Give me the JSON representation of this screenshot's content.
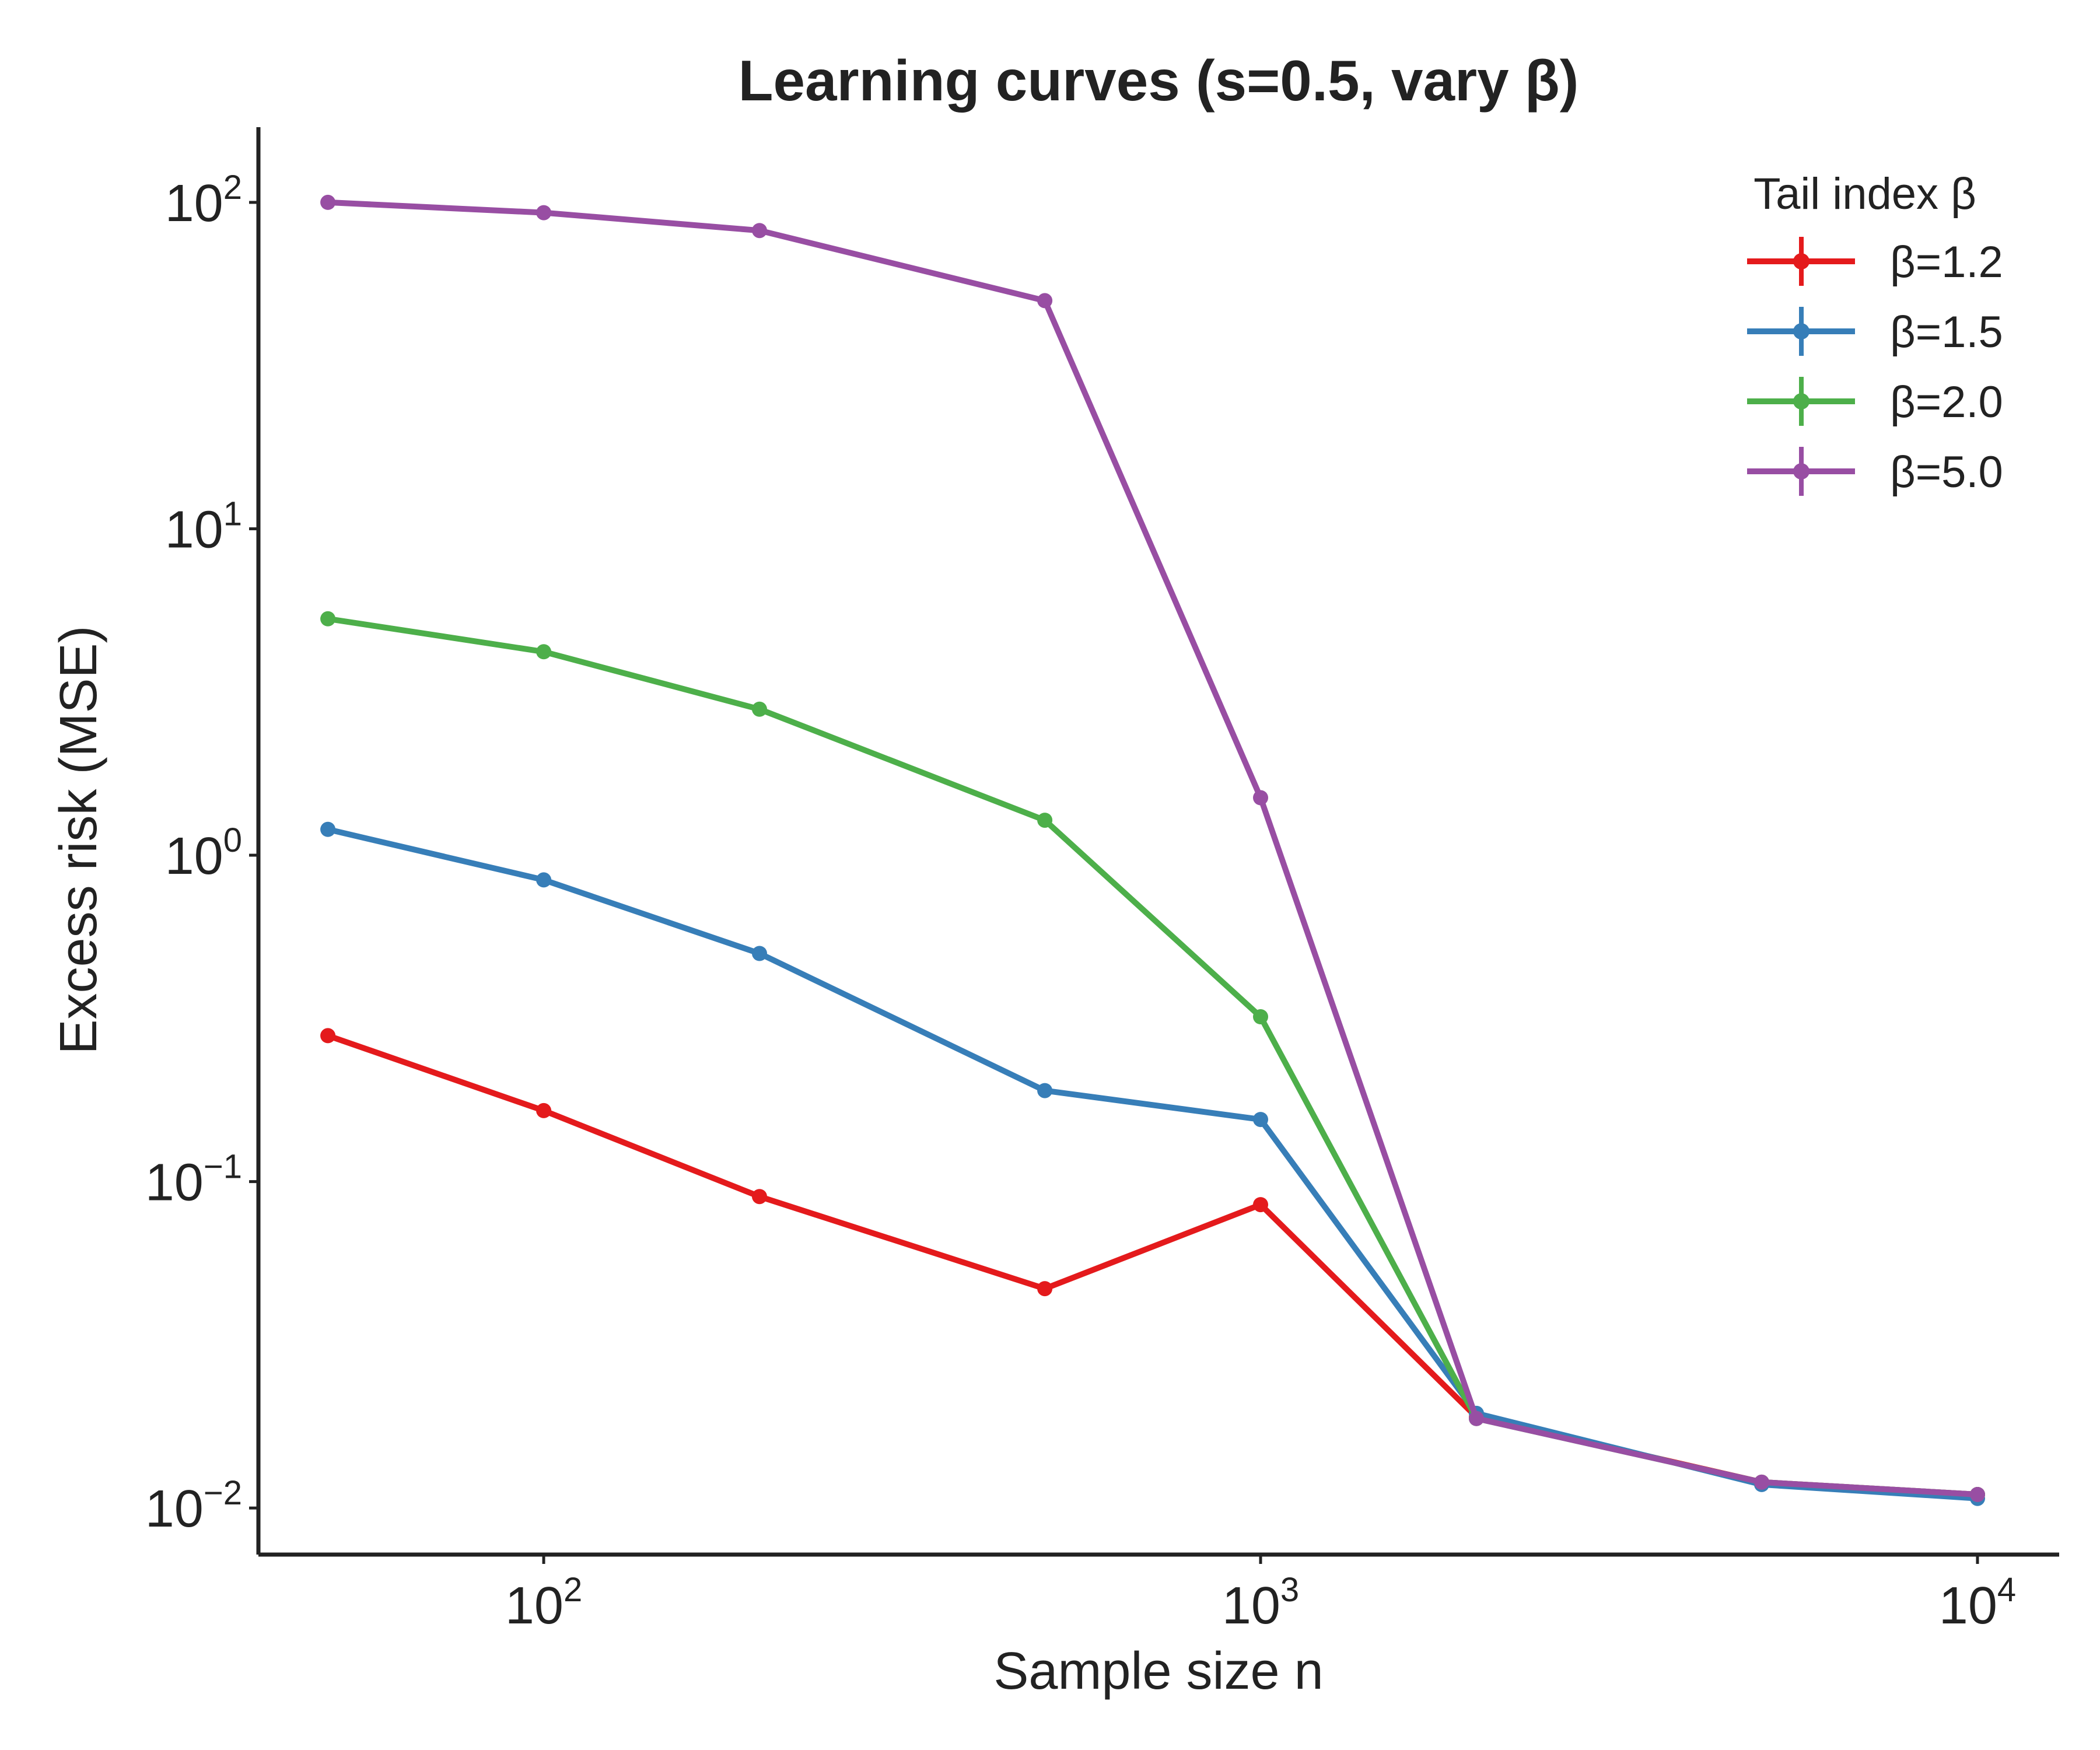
{
  "chart_data": {
    "type": "line",
    "title": "Learning curves (s=0.5, vary β)",
    "xlabel": "Sample size n",
    "ylabel": "Excess risk (MSE)",
    "xscale": "log",
    "yscale": "log",
    "xlim": [
      40,
      13000
    ],
    "ylim": [
      0.0072,
      170
    ],
    "x_ticks": [
      {
        "base": "10",
        "exp": "2",
        "value": 100
      },
      {
        "base": "10",
        "exp": "3",
        "value": 1000
      },
      {
        "base": "10",
        "exp": "4",
        "value": 10000
      }
    ],
    "y_ticks": [
      {
        "base": "10",
        "exp": "−2",
        "value": 0.01
      },
      {
        "base": "10",
        "exp": "−1",
        "value": 0.1
      },
      {
        "base": "10",
        "exp": "0",
        "value": 1
      },
      {
        "base": "10",
        "exp": "1",
        "value": 10
      },
      {
        "base": "10",
        "exp": "2",
        "value": 100
      }
    ],
    "grid": false,
    "legend": {
      "title": "Tail index β",
      "position": "top-right"
    },
    "x": [
      50,
      100,
      200,
      500,
      1000,
      2000,
      5000,
      10000
    ],
    "series": [
      {
        "name": "β=1.2",
        "color": "#e41a1c",
        "values": [
          0.28,
          0.165,
          0.09,
          0.047,
          0.085,
          0.019,
          0.012,
          0.011
        ]
      },
      {
        "name": "β=1.5",
        "color": "#377eb8",
        "values": [
          1.2,
          0.84,
          0.5,
          0.19,
          0.155,
          0.0195,
          0.0118,
          0.0107
        ]
      },
      {
        "name": "β=2.0",
        "color": "#4daf4a",
        "values": [
          5.3,
          4.2,
          2.8,
          1.28,
          0.32,
          0.0188,
          0.012,
          0.011
        ]
      },
      {
        "name": "β=5.0",
        "color": "#984ea3",
        "values": [
          100,
          93,
          82,
          50,
          1.5,
          0.0188,
          0.012,
          0.011
        ]
      }
    ]
  }
}
